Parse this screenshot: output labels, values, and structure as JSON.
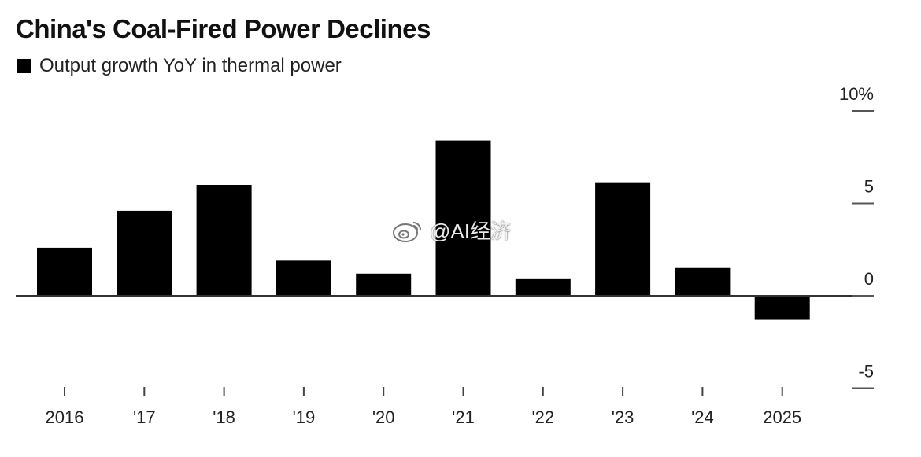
{
  "chart_data": {
    "type": "bar",
    "title": "China's Coal-Fired Power Declines",
    "legend": [
      {
        "label": "Output growth YoY in thermal power",
        "color": "#000000"
      }
    ],
    "categories": [
      "2016",
      "'17",
      "'18",
      "'19",
      "'20",
      "'21",
      "'22",
      "'23",
      "'24",
      "2025"
    ],
    "series": [
      {
        "name": "Output growth YoY in thermal power",
        "values": [
          2.6,
          4.6,
          6.0,
          1.9,
          1.2,
          8.4,
          0.9,
          6.1,
          1.5,
          -1.3
        ]
      }
    ],
    "ylim": [
      -5,
      10
    ],
    "yticks": [
      10,
      5,
      0,
      -5
    ],
    "ytick_labels": [
      "10%",
      "5",
      "0",
      "-5"
    ],
    "y_axis_position": "right",
    "grid": false,
    "legend_placement": "top-left",
    "bar_color": "#000000"
  },
  "watermark": {
    "text": "@AI经济",
    "icon": "weibo-icon"
  }
}
